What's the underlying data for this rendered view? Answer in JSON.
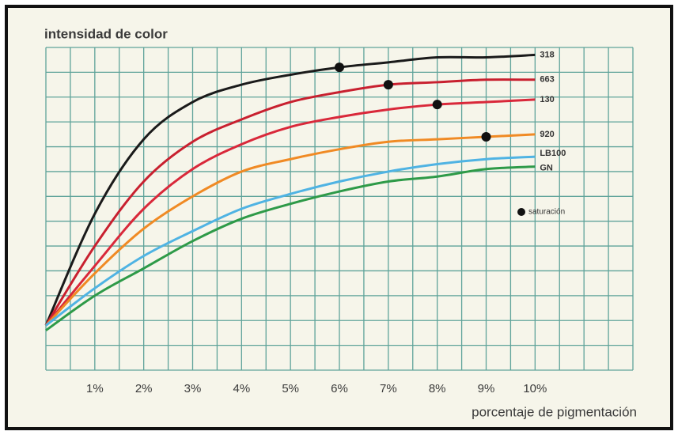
{
  "chart_data": {
    "type": "line",
    "y_label": "intensidad de color",
    "x_label": "porcentaje de pigmentación",
    "x": [
      0,
      1,
      2,
      3,
      4,
      5,
      6,
      7,
      8,
      9,
      10
    ],
    "xlim": [
      0,
      12
    ],
    "ylim": [
      0,
      13
    ],
    "xticks": [
      {
        "value": 1,
        "label": "1%"
      },
      {
        "value": 2,
        "label": "2%"
      },
      {
        "value": 3,
        "label": "3%"
      },
      {
        "value": 4,
        "label": "4%"
      },
      {
        "value": 5,
        "label": "5%"
      },
      {
        "value": 6,
        "label": "6%"
      },
      {
        "value": 7,
        "label": "7%"
      },
      {
        "value": 8,
        "label": "8%"
      },
      {
        "value": 9,
        "label": "9%"
      },
      {
        "value": 10,
        "label": "10%"
      }
    ],
    "grid": true,
    "series": [
      {
        "name": "318",
        "color": "#1a1a1a",
        "saturation": 6,
        "values": [
          1.8,
          6.3,
          9.3,
          10.8,
          11.5,
          11.9,
          12.2,
          12.4,
          12.6,
          12.6,
          12.7
        ]
      },
      {
        "name": "663",
        "color": "#c8202f",
        "saturation": 7,
        "values": [
          1.8,
          5.0,
          7.6,
          9.2,
          10.1,
          10.8,
          11.2,
          11.5,
          11.6,
          11.7,
          11.7
        ]
      },
      {
        "name": "130",
        "color": "#d9283a",
        "saturation": 8,
        "values": [
          1.8,
          4.2,
          6.5,
          8.1,
          9.1,
          9.8,
          10.2,
          10.5,
          10.7,
          10.8,
          10.9
        ]
      },
      {
        "name": "920",
        "color": "#f08a24",
        "saturation": 9,
        "values": [
          1.8,
          3.9,
          5.7,
          7.0,
          8.0,
          8.5,
          8.9,
          9.2,
          9.3,
          9.4,
          9.5
        ]
      },
      {
        "name": "LB100",
        "color": "#4fb3e3",
        "values": [
          1.8,
          3.3,
          4.6,
          5.6,
          6.5,
          7.1,
          7.6,
          8.0,
          8.3,
          8.5,
          8.6
        ]
      },
      {
        "name": "GN",
        "color": "#2e9a48",
        "values": [
          1.6,
          3.0,
          4.1,
          5.2,
          6.1,
          6.7,
          7.2,
          7.6,
          7.8,
          8.1,
          8.2
        ]
      }
    ],
    "marker_legend": "saturación"
  }
}
